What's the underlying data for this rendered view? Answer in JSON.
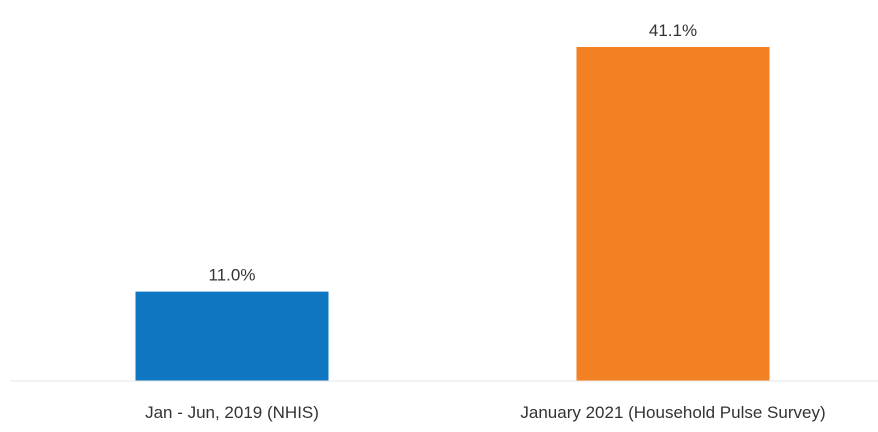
{
  "chart_data": {
    "type": "bar",
    "categories": [
      "Jan - Jun, 2019 (NHIS)",
      "January 2021 (Household Pulse Survey)"
    ],
    "values": [
      11.0,
      41.1
    ],
    "value_labels": [
      "11.0%",
      "41.1%"
    ],
    "colors": [
      "#0f77c2",
      "#f28124"
    ],
    "title": "",
    "xlabel": "",
    "ylabel": "",
    "ylim": [
      0,
      41.1
    ],
    "grid": false,
    "legend": "none"
  }
}
